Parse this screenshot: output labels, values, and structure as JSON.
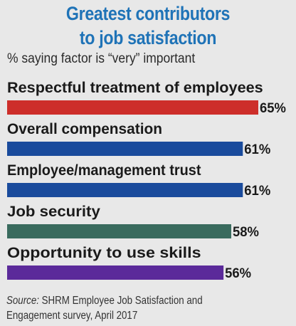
{
  "chart_data": {
    "type": "bar",
    "orientation": "horizontal",
    "title_lines": [
      "Greatest contributors",
      "to job satisfaction"
    ],
    "subtitle": "% saying factor is “very” important",
    "categories": [
      "Respectful treatment of employees",
      "Overall compensation",
      "Employee/management trust",
      "Job security",
      "Opportunity to use skills"
    ],
    "values": [
      65,
      61,
      61,
      58,
      56
    ],
    "value_labels": [
      "65%",
      "61%",
      "61%",
      "58%",
      "56%"
    ],
    "bar_colors": [
      "#cd2e2a",
      "#1a4b9c",
      "#1a4b9c",
      "#3a6b5e",
      "#5b2a9a"
    ],
    "xlim": [
      0,
      65
    ],
    "grid": false,
    "legend": "none"
  },
  "source": {
    "label": "Source:",
    "text": " SHRM Employee Job Satisfaction and Engagement survey, April 2017"
  }
}
